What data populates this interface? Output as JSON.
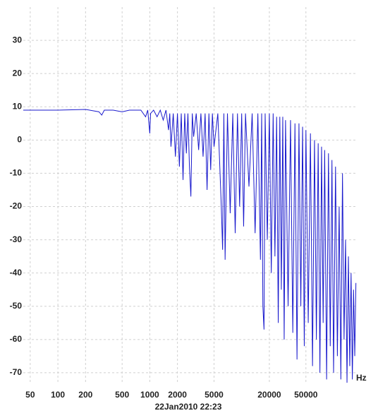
{
  "chart_data": {
    "type": "line",
    "log_x": true,
    "grid": true,
    "x_unit": "Hz",
    "timestamp": "22Jan2010  22:23",
    "xlim": [
      42,
      176000
    ],
    "ylim": [
      -73.2,
      40
    ],
    "xticks": [
      50,
      100,
      200,
      500,
      1000,
      2000,
      5000,
      20000,
      50000
    ],
    "yticks": [
      -70,
      -60,
      -50,
      -40,
      -30,
      -20,
      -10,
      0,
      10,
      20,
      30
    ],
    "series": [
      {
        "color": "#1a1acd",
        "x": [
          42,
          100,
          200,
          280,
          300,
          320,
          400,
          500,
          600,
          800,
          900,
          950,
          1000,
          1020,
          1100,
          1200,
          1300,
          1400,
          1500,
          1600,
          1650,
          1700,
          1800,
          1900,
          2000,
          2100,
          2200,
          2300,
          2400,
          2500,
          2600,
          2700,
          2800,
          2900,
          3000,
          3200,
          3400,
          3600,
          3800,
          4000,
          4200,
          4400,
          4600,
          4800,
          5000,
          5500,
          6000,
          6200,
          6400,
          6600,
          7000,
          7500,
          8000,
          8500,
          9000,
          9500,
          10000,
          10500,
          11000,
          12000,
          13000,
          14000,
          15000,
          16000,
          16500,
          17000,
          17500,
          18000,
          19000,
          20000,
          21000,
          22000,
          23000,
          24000,
          25000,
          26000,
          27000,
          28000,
          29000,
          30000,
          32000,
          34000,
          36000,
          38000,
          40000,
          42000,
          44000,
          46000,
          48000,
          50000,
          53000,
          56000,
          59000,
          62000,
          65000,
          68000,
          71000,
          74000,
          77000,
          80000,
          84000,
          88000,
          92000,
          96000,
          100000,
          105000,
          110000,
          115000,
          120000,
          125000,
          130000,
          135000,
          140000,
          145000,
          150000,
          155000,
          160000,
          165000,
          170000,
          175000
        ],
        "values": [
          9,
          9,
          9.2,
          8.5,
          7.5,
          9,
          9,
          8.5,
          9,
          9,
          7,
          9,
          2,
          8,
          9,
          7,
          9,
          6,
          9,
          3,
          8,
          -2,
          8,
          -5,
          8,
          -8,
          8,
          -12,
          8,
          -4,
          8,
          -8,
          -17,
          8,
          1,
          8,
          -3,
          8,
          -5,
          8,
          -15,
          8,
          -9,
          8,
          -2,
          8,
          -20,
          -33,
          8,
          -36,
          8,
          -22,
          8,
          -28,
          8,
          -20,
          8,
          -26,
          8,
          -14,
          8,
          -28,
          8,
          -36,
          8,
          -50,
          -57,
          8,
          -30,
          8,
          -40,
          8,
          -35,
          7,
          -55,
          7,
          -45,
          7,
          -60,
          6,
          -50,
          6,
          -58,
          5,
          -66,
          5,
          -50,
          4,
          -62,
          3,
          -55,
          2,
          -68,
          0,
          -60,
          -1,
          -70,
          -2,
          -55,
          -3,
          -72,
          -4,
          -62,
          -6,
          -70,
          -8,
          -65,
          -20,
          -72,
          -10,
          -60,
          -30,
          -73,
          -35,
          -68,
          -40,
          -72,
          -45,
          -65,
          -43
        ]
      }
    ]
  }
}
